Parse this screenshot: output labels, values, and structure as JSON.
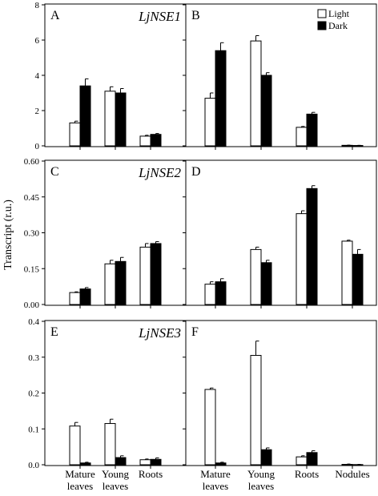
{
  "y_axis_label": "Transcript (r.u.)",
  "legend": {
    "light_label": "Light",
    "dark_label": "Dark",
    "light_color": "#ffffff",
    "dark_color": "#000000"
  },
  "chart_data": [
    {
      "panel": "A",
      "gene": "LjNSE1",
      "type": "bar",
      "categories": [
        [
          "Mature",
          "leaves"
        ],
        [
          "Young",
          "leaves"
        ],
        [
          "Roots"
        ]
      ],
      "series": [
        {
          "name": "Light",
          "values": [
            1.3,
            3.1,
            0.55
          ],
          "errors": [
            0.1,
            0.25,
            0.05
          ]
        },
        {
          "name": "Dark",
          "values": [
            3.4,
            3.0,
            0.65
          ],
          "errors": [
            0.4,
            0.25,
            0.05
          ]
        }
      ],
      "ylim": [
        0,
        8
      ],
      "yticks": [
        0,
        2,
        4,
        6,
        8
      ],
      "tick_labels": [
        "0",
        "2",
        "4",
        "6",
        "8"
      ]
    },
    {
      "panel": "B",
      "gene": "",
      "type": "bar",
      "categories": [
        [
          "Mature",
          "leaves"
        ],
        [
          "Young",
          "leaves"
        ],
        [
          "Roots"
        ],
        [
          "Nodules"
        ]
      ],
      "series": [
        {
          "name": "Light",
          "values": [
            2.7,
            5.95,
            1.05,
            0.03
          ],
          "errors": [
            0.3,
            0.3,
            0.05,
            0.01
          ]
        },
        {
          "name": "Dark",
          "values": [
            5.4,
            4.0,
            1.8,
            0.02
          ],
          "errors": [
            0.45,
            0.15,
            0.1,
            0.01
          ]
        }
      ],
      "ylim": [
        0,
        8
      ],
      "yticks": [
        0,
        2,
        4,
        6,
        8
      ]
    },
    {
      "panel": "C",
      "gene": "LjNSE2",
      "type": "bar",
      "categories": [
        [
          "Mature",
          "leaves"
        ],
        [
          "Young",
          "leaves"
        ],
        [
          "Roots"
        ]
      ],
      "series": [
        {
          "name": "Light",
          "values": [
            0.05,
            0.17,
            0.24
          ],
          "errors": [
            0.003,
            0.015,
            0.015
          ]
        },
        {
          "name": "Dark",
          "values": [
            0.065,
            0.18,
            0.255
          ],
          "errors": [
            0.006,
            0.017,
            0.008
          ]
        }
      ],
      "ylim": [
        0,
        0.6
      ],
      "yticks": [
        0,
        0.15,
        0.3,
        0.45,
        0.6
      ],
      "tick_labels": [
        "0.00",
        "0.15",
        "0.30",
        "0.45",
        "0.60"
      ]
    },
    {
      "panel": "D",
      "gene": "",
      "type": "bar",
      "categories": [
        [
          "Mature",
          "leaves"
        ],
        [
          "Young",
          "leaves"
        ],
        [
          "Roots"
        ],
        [
          "Nodules"
        ]
      ],
      "series": [
        {
          "name": "Light",
          "values": [
            0.085,
            0.23,
            0.38,
            0.265
          ],
          "errors": [
            0.01,
            0.01,
            0.012,
            0.004
          ]
        },
        {
          "name": "Dark",
          "values": [
            0.095,
            0.175,
            0.485,
            0.21
          ],
          "errors": [
            0.013,
            0.01,
            0.012,
            0.02
          ]
        }
      ],
      "ylim": [
        0,
        0.6
      ],
      "yticks": [
        0,
        0.15,
        0.3,
        0.45,
        0.6
      ]
    },
    {
      "panel": "E",
      "gene": "LjNSE3",
      "type": "bar",
      "categories": [
        [
          "Mature",
          "leaves"
        ],
        [
          "Young",
          "leaves"
        ],
        [
          "Roots"
        ]
      ],
      "series": [
        {
          "name": "Light",
          "values": [
            0.108,
            0.115,
            0.014
          ],
          "errors": [
            0.01,
            0.012,
            0.002
          ]
        },
        {
          "name": "Dark",
          "values": [
            0.005,
            0.02,
            0.015
          ],
          "errors": [
            0.002,
            0.005,
            0.004
          ]
        }
      ],
      "ylim": [
        0,
        0.4
      ],
      "yticks": [
        0,
        0.1,
        0.2,
        0.3,
        0.4
      ],
      "tick_labels": [
        "0.0",
        "0.1",
        "0.2",
        "0.3",
        "0.4"
      ]
    },
    {
      "panel": "F",
      "gene": "",
      "type": "bar",
      "categories": [
        [
          "Mature",
          "leaves"
        ],
        [
          "Young",
          "leaves"
        ],
        [
          "Roots"
        ],
        [
          "Nodules"
        ]
      ],
      "series": [
        {
          "name": "Light",
          "values": [
            0.21,
            0.305,
            0.022,
            0.001
          ],
          "errors": [
            0.004,
            0.04,
            0.003,
            0.001
          ]
        },
        {
          "name": "Dark",
          "values": [
            0.005,
            0.042,
            0.034,
            0.0005
          ],
          "errors": [
            0.002,
            0.005,
            0.005,
            0.0005
          ]
        }
      ],
      "ylim": [
        0,
        0.4
      ],
      "yticks": [
        0,
        0.1,
        0.2,
        0.3,
        0.4
      ]
    }
  ]
}
